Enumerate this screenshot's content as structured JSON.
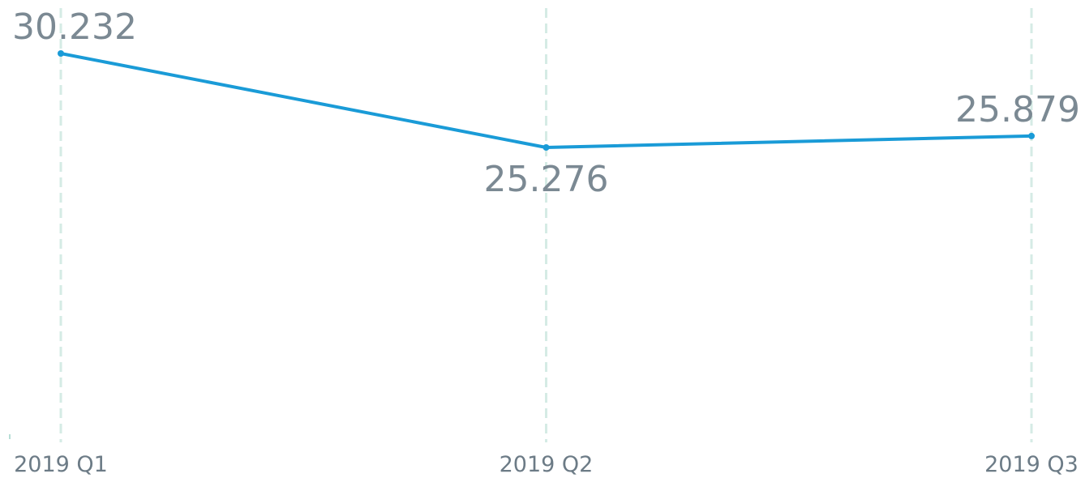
{
  "chart_data": {
    "type": "line",
    "categories": [
      "2019 Q1",
      "2019 Q2",
      "2019 Q3"
    ],
    "series": [
      {
        "color": "#1a9bd7",
        "values": [
          30.232,
          25.276,
          25.879
        ]
      }
    ],
    "grid": true
  }
}
